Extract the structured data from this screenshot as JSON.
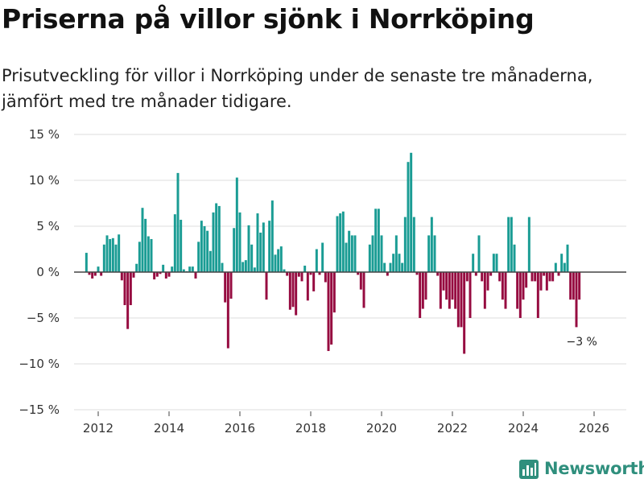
{
  "header": {
    "title": "Priserna på villor sjönk i Norrköping",
    "subtitle": "Prisutveckling för villor i Norrköping under de senaste tre månaderna, jämfört med tre månader tidigare."
  },
  "brand": {
    "name": "Newsworthy",
    "icon": "newsworthy-bar-chart-icon",
    "color": "#2f8f7d"
  },
  "chart_data": {
    "type": "bar",
    "title": "Priserna på villor sjönk i Norrköping",
    "xlabel": "",
    "ylabel": "",
    "unit": "%",
    "ylim": [
      -15,
      15
    ],
    "y_ticks": [
      15,
      10,
      5,
      0,
      -5,
      -10,
      -15
    ],
    "y_tick_labels": [
      "15 %",
      "10 %",
      "5 %",
      "0 %",
      "−5 %",
      "−10 %",
      "−15 %"
    ],
    "x_ticks": [
      2012,
      2014,
      2016,
      2018,
      2020,
      2022,
      2024,
      2026
    ],
    "x_tick_labels": [
      "2012",
      "2014",
      "2016",
      "2018",
      "2020",
      "2022",
      "2024",
      "2026"
    ],
    "grid": true,
    "positive_color": "#1a9c94",
    "negative_color": "#960b40",
    "start": {
      "year": 2011,
      "month": 9
    },
    "values": [
      2.1,
      -0.3,
      -0.7,
      -0.4,
      0.6,
      -0.4,
      3.0,
      4.0,
      3.6,
      3.7,
      3.0,
      4.1,
      -0.9,
      -3.6,
      -6.2,
      -3.6,
      -0.6,
      0.9,
      3.3,
      7.0,
      5.8,
      3.9,
      3.6,
      -0.8,
      -0.5,
      -0.2,
      0.8,
      -0.7,
      -0.5,
      0.6,
      6.3,
      10.8,
      5.7,
      0.3,
      0.1,
      0.6,
      0.6,
      -0.7,
      3.3,
      5.6,
      5.0,
      4.5,
      2.3,
      6.5,
      7.5,
      7.2,
      1.0,
      -3.3,
      -8.3,
      -2.9,
      4.8,
      10.3,
      6.5,
      1.1,
      1.3,
      5.1,
      3.0,
      0.5,
      6.4,
      4.3,
      5.4,
      -3.0,
      5.6,
      7.8,
      1.9,
      2.5,
      2.8,
      0.3,
      -0.4,
      -4.1,
      -3.8,
      -4.7,
      -0.5,
      -1.0,
      0.7,
      -3.1,
      -0.3,
      -2.1,
      2.5,
      -0.3,
      3.2,
      -1.1,
      -8.6,
      -7.9,
      -4.4,
      6.1,
      6.4,
      6.6,
      3.2,
      4.5,
      4.0,
      4.0,
      -0.3,
      -1.9,
      -3.9,
      0.0,
      3.0,
      4.0,
      6.9,
      6.9,
      4.0,
      1.0,
      -0.4,
      1.0,
      2.0,
      4.0,
      2.0,
      1.0,
      6.0,
      12.0,
      13.0,
      6.0,
      -0.3,
      -5.0,
      -4.0,
      -3.0,
      4.0,
      6.0,
      4.0,
      -0.4,
      -4.0,
      -2.0,
      -3.0,
      -4.0,
      -3.0,
      -4.0,
      -6.0,
      -6.0,
      -8.9,
      -1.0,
      -5.0,
      2.0,
      -0.4,
      4.0,
      -1.0,
      -4.0,
      -2.0,
      -0.4,
      2.0,
      2.0,
      -1.0,
      -3.0,
      -4.0,
      6.0,
      6.0,
      3.0,
      -4.0,
      -5.0,
      -3.0,
      -1.7,
      6.0,
      -1.0,
      -1.0,
      -5.0,
      -2.0,
      -0.4,
      -2.0,
      -1.0,
      -1.0,
      1.0,
      -0.4,
      2.0,
      1.0,
      3.0,
      -3.0,
      -3.0,
      -6.0,
      -3.0
    ],
    "annotations": [
      {
        "text": "−3 %",
        "target": "last"
      }
    ]
  }
}
